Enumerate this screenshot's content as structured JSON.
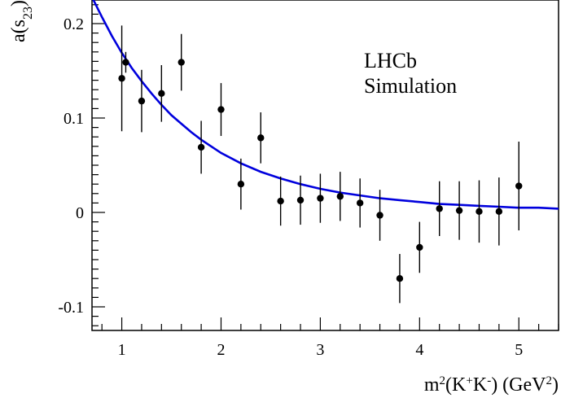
{
  "chart_data": {
    "type": "scatter",
    "xlabel": {
      "base": "m",
      "sup1": "2",
      "mid": "(K",
      "sup2": "+",
      "mid2": "K",
      "sup3": "-",
      "end": ") (GeV",
      "sup4": "2",
      "close": ")"
    },
    "ylabel": {
      "base": "a(s",
      "sub": "23",
      "close": ")"
    },
    "xlim": [
      0.7,
      5.4
    ],
    "ylim": [
      -0.125,
      0.225
    ],
    "x_ticks": [
      1,
      2,
      3,
      4,
      5
    ],
    "x_tick_labels": [
      "1",
      "2",
      "3",
      "4",
      "5"
    ],
    "y_ticks": [
      -0.1,
      0,
      0.1,
      0.2
    ],
    "y_tick_labels": [
      "-0.1",
      "0",
      "0.1",
      "0.2"
    ],
    "annotations": [
      "LHCb",
      "Simulation"
    ],
    "grid": false,
    "series": [
      {
        "kind": "points-with-errors",
        "color": "#000000",
        "points": [
          {
            "x": 1.0,
            "y": 0.142,
            "err": 0.056
          },
          {
            "x": 1.04,
            "y": 0.159,
            "err": 0.011
          },
          {
            "x": 1.2,
            "y": 0.118,
            "err": 0.033
          },
          {
            "x": 1.4,
            "y": 0.126,
            "err": 0.03
          },
          {
            "x": 1.6,
            "y": 0.159,
            "err": 0.03
          },
          {
            "x": 1.8,
            "y": 0.069,
            "err": 0.028
          },
          {
            "x": 2.0,
            "y": 0.109,
            "err": 0.028
          },
          {
            "x": 2.2,
            "y": 0.03,
            "err": 0.027
          },
          {
            "x": 2.4,
            "y": 0.079,
            "err": 0.027
          },
          {
            "x": 2.6,
            "y": 0.012,
            "err": 0.026
          },
          {
            "x": 2.8,
            "y": 0.013,
            "err": 0.026
          },
          {
            "x": 3.0,
            "y": 0.015,
            "err": 0.026
          },
          {
            "x": 3.2,
            "y": 0.017,
            "err": 0.026
          },
          {
            "x": 3.4,
            "y": 0.01,
            "err": 0.026
          },
          {
            "x": 3.6,
            "y": -0.003,
            "err": 0.027
          },
          {
            "x": 3.8,
            "y": -0.07,
            "err": 0.026
          },
          {
            "x": 4.0,
            "y": -0.037,
            "err": 0.027
          },
          {
            "x": 4.2,
            "y": 0.004,
            "err": 0.029
          },
          {
            "x": 4.4,
            "y": 0.002,
            "err": 0.031
          },
          {
            "x": 4.6,
            "y": 0.001,
            "err": 0.033
          },
          {
            "x": 4.8,
            "y": 0.001,
            "err": 0.036
          },
          {
            "x": 5.0,
            "y": 0.028,
            "err": 0.047
          }
        ]
      },
      {
        "kind": "curve",
        "color": "#0000dd",
        "x": [
          0.7,
          0.8,
          0.9,
          1.0,
          1.1,
          1.2,
          1.3,
          1.4,
          1.5,
          1.6,
          1.7,
          1.8,
          1.9,
          2.0,
          2.2,
          2.4,
          2.6,
          2.8,
          3.0,
          3.2,
          3.4,
          3.6,
          3.8,
          4.0,
          4.2,
          4.4,
          4.6,
          4.8,
          5.0,
          5.2,
          5.4
        ],
        "y": [
          0.228,
          0.207,
          0.187,
          0.169,
          0.153,
          0.139,
          0.126,
          0.114,
          0.103,
          0.094,
          0.085,
          0.077,
          0.07,
          0.063,
          0.052,
          0.043,
          0.036,
          0.03,
          0.025,
          0.021,
          0.018,
          0.015,
          0.013,
          0.011,
          0.009,
          0.008,
          0.007,
          0.006,
          0.005,
          0.005,
          0.004
        ]
      }
    ]
  }
}
